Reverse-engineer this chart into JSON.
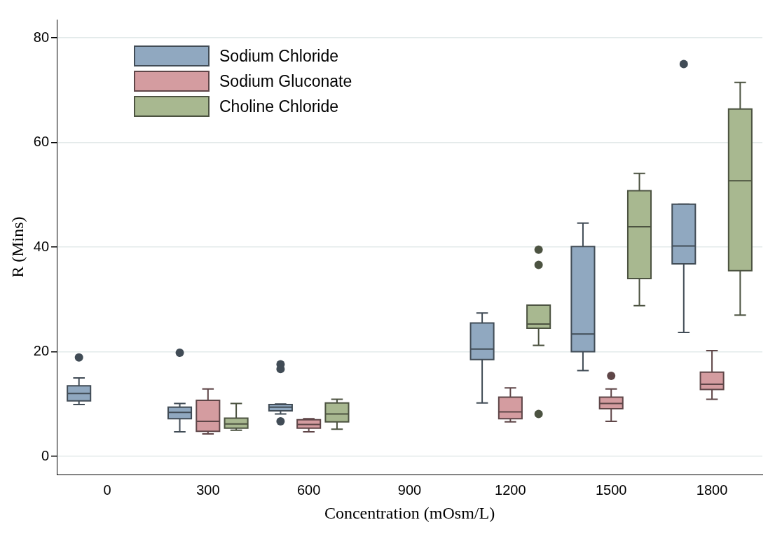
{
  "chart_data": {
    "type": "box",
    "xlabel": "Concentration (mOsm/L)",
    "ylabel": "R (Mins)",
    "categories": [
      "0",
      "300",
      "600",
      "900",
      "1200",
      "1500",
      "1800"
    ],
    "ylim": [
      -3.5,
      83.5
    ],
    "yticks": [
      0,
      20,
      40,
      60,
      80
    ],
    "grid": "y",
    "legend": "top left",
    "series": [
      {
        "name": "Sodium Chloride",
        "color": "#90a8c0",
        "boxes": [
          {
            "low": 9.9,
            "q1": 10.6,
            "median": 12.0,
            "q3": 13.5,
            "high": 15.0,
            "outliers": [
              18.9
            ]
          },
          {
            "low": 4.7,
            "q1": 7.2,
            "median": 8.4,
            "q3": 9.4,
            "high": 10.1,
            "outliers": [
              19.8
            ]
          },
          {
            "low": 8.1,
            "q1": 8.7,
            "median": 9.4,
            "q3": 9.9,
            "high": 10.0,
            "outliers": [
              17.6,
              16.7,
              6.7
            ]
          },
          null,
          {
            "low": 10.2,
            "q1": 18.5,
            "median": 20.5,
            "q3": 25.5,
            "high": 27.4
          },
          {
            "low": 16.4,
            "q1": 20.0,
            "median": 23.4,
            "q3": 40.1,
            "high": 44.6
          },
          {
            "low": 23.7,
            "q1": 36.8,
            "median": 40.2,
            "q3": 48.2,
            "high": 48.2,
            "outliers": [
              75.0
            ]
          }
        ]
      },
      {
        "name": "Sodium Gluconate",
        "color": "#d49ca0",
        "boxes": [
          null,
          {
            "low": 4.3,
            "q1": 4.8,
            "median": 6.7,
            "q3": 10.7,
            "high": 12.9
          },
          {
            "low": 4.7,
            "q1": 5.4,
            "median": 6.1,
            "q3": 7.0,
            "high": 7.2
          },
          null,
          {
            "low": 6.6,
            "q1": 7.2,
            "median": 8.5,
            "q3": 11.3,
            "high": 13.1
          },
          {
            "low": 6.7,
            "q1": 9.1,
            "median": 10.1,
            "q3": 11.3,
            "high": 12.9,
            "outliers": [
              15.4
            ]
          },
          {
            "low": 10.9,
            "q1": 12.8,
            "median": 13.8,
            "q3": 16.1,
            "high": 20.2
          }
        ]
      },
      {
        "name": "Choline Chloride",
        "color": "#a8b890",
        "boxes": [
          null,
          {
            "low": 5.0,
            "q1": 5.4,
            "median": 6.2,
            "q3": 7.3,
            "high": 10.1
          },
          {
            "low": 5.2,
            "q1": 6.6,
            "median": 8.1,
            "q3": 10.2,
            "high": 10.9
          },
          null,
          {
            "low": 21.2,
            "q1": 24.5,
            "median": 25.3,
            "q3": 28.9,
            "high": 28.9,
            "outliers": [
              39.5,
              36.6,
              8.1
            ]
          },
          {
            "low": 28.8,
            "q1": 34.0,
            "median": 43.9,
            "q3": 50.8,
            "high": 54.1
          },
          {
            "low": 27.0,
            "q1": 35.5,
            "median": 52.7,
            "q3": 66.4,
            "high": 71.5
          }
        ]
      }
    ]
  }
}
